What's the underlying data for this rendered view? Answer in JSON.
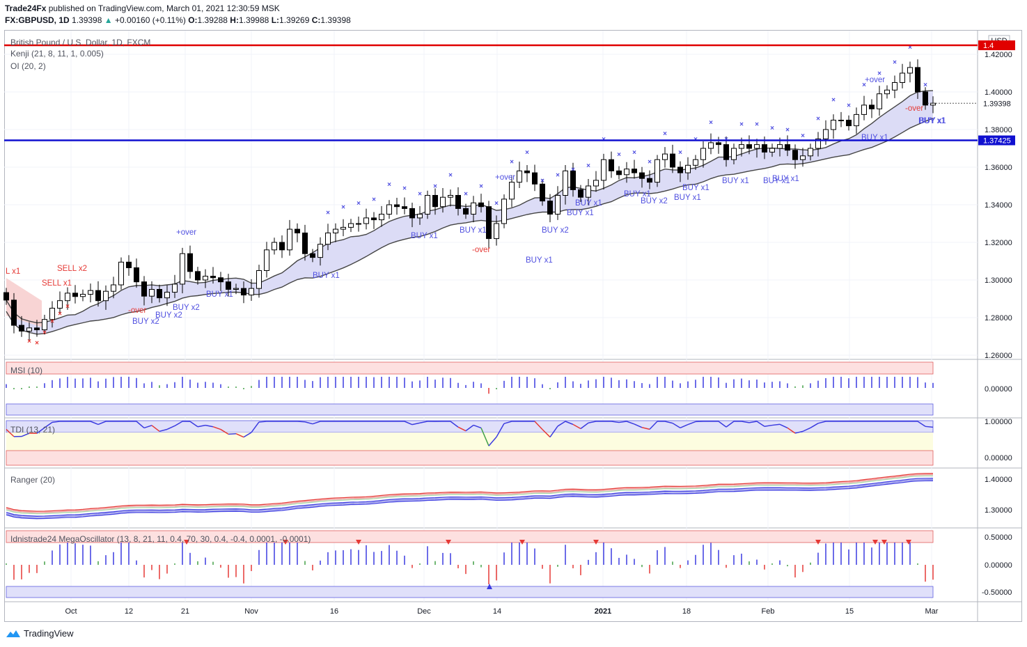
{
  "header": {
    "publisher": "Trade24Fx",
    "published_text": "published on TradingView.com, March 01, 2021 12:30:59 MSK",
    "symbol": "FX:GBPUSD, 1D",
    "last": "1.39398",
    "change": "+0.00160 (+0.11%)",
    "o_label": "O:",
    "o": "1.39288",
    "h_label": "H:",
    "h": "1.39988",
    "l_label": "L:",
    "l": "1.39269",
    "c_label": "C:",
    "c": "1.39398"
  },
  "main_pane": {
    "title": "British Pound / U.S. Dollar, 1D, FXCM",
    "ind1": "Kenji (21, 8, 11, 1, 0.005)",
    "ind2": "OI (20, 2)",
    "currency": "USD",
    "price_badge": "1.39398",
    "red_line_badge": "1.4",
    "blue_line_badge": "1.37425",
    "red_line_value": 1.4248,
    "blue_line_value": 1.37425,
    "y_ticks": [
      "1.42000",
      "1.40000",
      "1.38000",
      "1.36000",
      "1.34000",
      "1.32000",
      "1.30000",
      "1.28000",
      "1.26000"
    ],
    "signals": [
      "L x1",
      "SELL x2",
      "SELL x1",
      "+over",
      "-over",
      "BUY x2",
      "BUY x2",
      "BUY x2",
      "BUY x1",
      "BUY x1",
      "+over",
      "BUY x1",
      "BUY x1",
      "-over",
      "BUY x1",
      "BUY x2",
      "BUY x1",
      "BUY x1",
      "BUY x1",
      "BUY x2",
      "BUY x1",
      "BUY x1",
      "BUY x1",
      "BUY x1",
      "BUY x1",
      "+over",
      "BUY x1",
      "-over",
      "BUY x1",
      "BUY x1"
    ]
  },
  "msi_pane": {
    "title": "MSI (10)",
    "y_ticks": [
      "0.00000"
    ]
  },
  "tdi_pane": {
    "title": "TDI (13, 21)",
    "y_ticks": [
      "1.00000",
      "0.00000"
    ]
  },
  "ranger_pane": {
    "title": "Ranger (20)",
    "y_ticks": [
      "1.40000",
      "1.30000"
    ]
  },
  "mega_pane": {
    "title": "Idnistrade24 MegaOscillator (13, 8, 21, 11, 0.4, 70, 30, 0.4, -0.4, 0.0001, -0.0001)",
    "y_ticks": [
      "0.50000",
      "0.00000",
      "-0.50000"
    ]
  },
  "x_ticks": [
    "Oct",
    "12",
    "21",
    "Nov",
    "16",
    "Dec",
    "14",
    "2021",
    "18",
    "Feb",
    "15",
    "Mar"
  ],
  "branding": "TradingView",
  "colors": {
    "bull_band": "#d8d8f6",
    "bear_band": "#f8d4d4",
    "up_band": "#d8f0d8",
    "red": "#e53935",
    "blue": "#2a2aff",
    "msi_blue": "#3b3be0",
    "msi_red": "#e53935",
    "msi_green": "#43a047"
  },
  "chart_data": {
    "type": "candlestick",
    "title": "British Pound / U.S. Dollar, 1D, FXCM",
    "ylim": [
      1.255,
      1.435
    ],
    "x_range": [
      "2020-09-21",
      "2021-03-01"
    ],
    "closes": [
      1.2893,
      1.2759,
      1.2728,
      1.2745,
      1.2735,
      1.279,
      1.285,
      1.289,
      1.293,
      1.2912,
      1.2924,
      1.2944,
      1.289,
      1.294,
      1.2974,
      1.3095,
      1.3065,
      1.299,
      1.2914,
      1.295,
      1.2905,
      1.2935,
      1.2978,
      1.314,
      1.3045,
      1.3,
      1.302,
      1.3012,
      1.299,
      1.295,
      1.2955,
      1.292,
      1.2955,
      1.305,
      1.316,
      1.32,
      1.316,
      1.327,
      1.325,
      1.314,
      1.312,
      1.319,
      1.325,
      1.327,
      1.328,
      1.33,
      1.33,
      1.333,
      1.332,
      1.335,
      1.34,
      1.339,
      1.338,
      1.333,
      1.335,
      1.345,
      1.339,
      1.344,
      1.345,
      1.338,
      1.335,
      1.341,
      1.339,
      1.322,
      1.33,
      1.343,
      1.352,
      1.358,
      1.357,
      1.351,
      1.342,
      1.335,
      1.345,
      1.358,
      1.348,
      1.344,
      1.35,
      1.353,
      1.364,
      1.358,
      1.356,
      1.359,
      1.357,
      1.354,
      1.352,
      1.364,
      1.367,
      1.36,
      1.357,
      1.361,
      1.364,
      1.37,
      1.373,
      1.372,
      1.364,
      1.37,
      1.372,
      1.37,
      1.372,
      1.368,
      1.37,
      1.372,
      1.369,
      1.364,
      1.366,
      1.37,
      1.375,
      1.38,
      1.385,
      1.385,
      1.382,
      1.388,
      1.393,
      1.391,
      1.399,
      1.401,
      1.405,
      1.41,
      1.413,
      1.4,
      1.393,
      1.394
    ]
  }
}
